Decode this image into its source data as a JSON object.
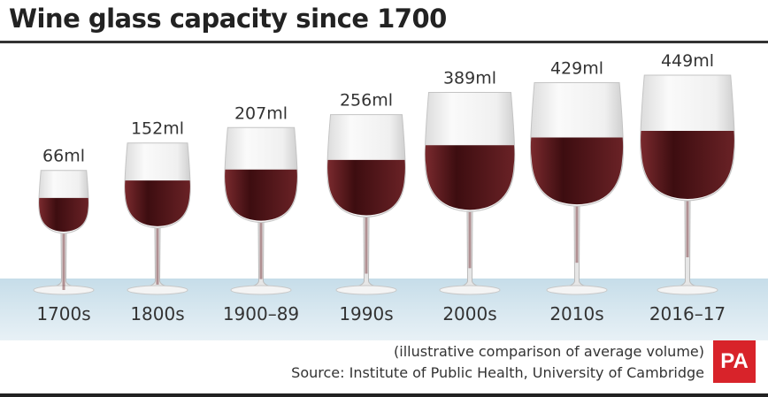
{
  "chart_data": {
    "type": "bar",
    "title": "Wine glass capacity since 1700",
    "categories": [
      "1700s",
      "1800s",
      "1900–89",
      "1990s",
      "2000s",
      "2010s",
      "2016–17"
    ],
    "values": [
      66,
      152,
      207,
      256,
      389,
      429,
      449
    ],
    "data_labels": [
      "66ml",
      "152ml",
      "207ml",
      "256ml",
      "389ml",
      "429ml",
      "449ml"
    ],
    "unit": "ml",
    "mark": "wine-glass",
    "colors": {
      "wine": "#5a1518",
      "glass": "#f2f2f2",
      "band": "#cfe3ee"
    }
  },
  "footer": {
    "note": "(illustrative comparison of average volume)",
    "source": "Source: Institute of Public Health, University of Cambridge",
    "logo": "PA"
  }
}
